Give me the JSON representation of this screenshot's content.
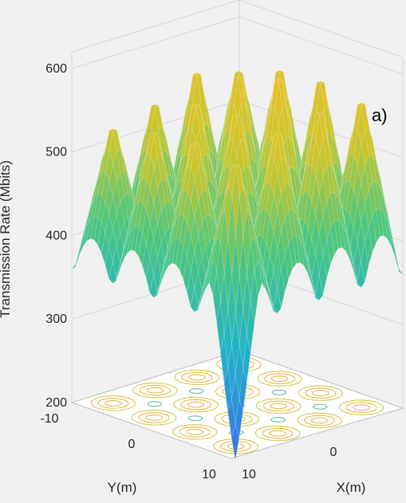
{
  "chart_data": {
    "type": "surface",
    "panel_label": "a)",
    "ylabel": "Transmission Rate (Mbits)",
    "xlabel": "X(m)",
    "yaxis_label": "Y(m)",
    "z_ticks": [
      "200",
      "300",
      "400",
      "500",
      "600"
    ],
    "x_ticks": [
      "0",
      "10"
    ],
    "y_ticks": [
      "-10",
      "0",
      "10"
    ],
    "zlim": [
      200,
      620
    ],
    "xlim": [
      -10,
      10
    ],
    "ylim": [
      -10,
      10
    ],
    "grid": true,
    "colormap": "parula",
    "has_contour_projection": true,
    "peaks": [
      {
        "x": -7.5,
        "y": -7.5,
        "z": 570
      },
      {
        "x": -2.5,
        "y": -7.5,
        "z": 590
      },
      {
        "x": 2.5,
        "y": -7.5,
        "z": 595
      },
      {
        "x": 7.5,
        "y": -7.5,
        "z": 585
      },
      {
        "x": -7.5,
        "y": -2.5,
        "z": 585
      },
      {
        "x": -2.5,
        "y": -2.5,
        "z": 600
      },
      {
        "x": 2.5,
        "y": -2.5,
        "z": 615
      },
      {
        "x": 7.5,
        "y": -2.5,
        "z": 590
      },
      {
        "x": -7.5,
        "y": 2.5,
        "z": 560
      },
      {
        "x": -2.5,
        "y": 2.5,
        "z": 580
      },
      {
        "x": 2.5,
        "y": 2.5,
        "z": 585
      },
      {
        "x": 7.5,
        "y": 2.5,
        "z": 580
      },
      {
        "x": -7.5,
        "y": 7.5,
        "z": 545
      },
      {
        "x": -2.5,
        "y": 7.5,
        "z": 560
      },
      {
        "x": 2.5,
        "y": 7.5,
        "z": 565
      },
      {
        "x": 7.5,
        "y": 7.5,
        "z": 555
      }
    ],
    "edge_level": 320,
    "valley_level": 360,
    "minimum": {
      "x": 10,
      "y": 10,
      "z": 200
    }
  }
}
